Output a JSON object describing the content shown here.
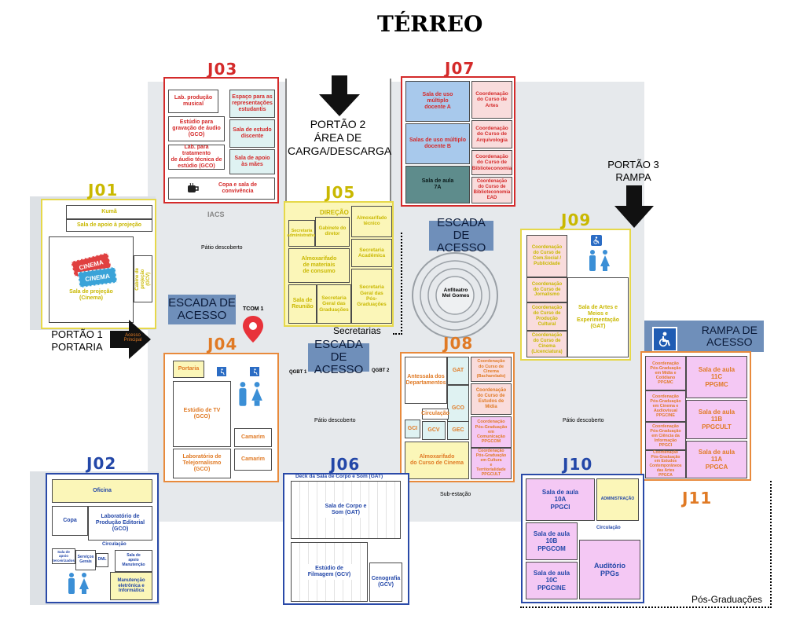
{
  "title": "TÉRREO",
  "blocks": {
    "j01": "J01",
    "j02": "J02",
    "j03": "J03",
    "j04": "J04",
    "j05": "J05",
    "j06": "J06",
    "j07": "J07",
    "j08": "J08",
    "j09": "J09",
    "j10": "J10",
    "j11": "J11"
  },
  "gates": {
    "portao1": "PORTÃO 1\nPORTARIA",
    "portao2": "PORTÃO 2\nÁREA DE\nCARGA/DESCARGA",
    "portao3": "PORTÃO 3\nRAMPA",
    "acesso_principal": "Acesso\nPrincipal"
  },
  "stairs": {
    "s1": "ESCADA DE\nACESSO",
    "s2": "ESCADA DE\nACESSO",
    "s3": "ESCADA DE\nACESSO",
    "ramp": "RAMPA DE\nACESSO"
  },
  "zones": {
    "secretarias": "Secretarias",
    "pos_graduacoes": "Pós-Graduações",
    "patio1": "Pátio descoberto",
    "patio2": "Pátio descoberto",
    "patio3": "Pátio descoberto",
    "iacs": "IACS",
    "sub_estacao": "Sub-estação",
    "tcom": "TCOM 1",
    "qgbt1": "QGBT 1",
    "qgbt2": "QGBT 2",
    "anfiteatro": "Anfiteatro\nMel Gomes"
  },
  "j01": {
    "kuma": "Kumã",
    "apoio_projecao": "Sala de apoio à projeção",
    "projecao": "Sala de projeção\n(Cinema)",
    "cabine": "Cabine de\nprojeção\n(GCV)",
    "ticket1": "CINEMA",
    "ticket2": "CINEMA"
  },
  "j02": {
    "oficina": "Oficina",
    "copa": "Copa",
    "lab_editorial": "Laboratório de\nProdução Editorial\n(GCO)",
    "circulacao": "Circulação",
    "apoio_terceirizados": "Sala de apoio\nterceirizados",
    "servicos_gerais": "Serviços\nGerais",
    "dml": "DML",
    "apoio_manutencao": "Sala de\napoio\nManutenção",
    "manutencao": "Manutenção\neletrônica e\nInformática"
  },
  "j03": {
    "lab_musical": "Lab. produção\nmusical",
    "espaco": "Espaço para as\nrepresentações\nestudantis",
    "estudio_audio": "Estúdio para\ngravação de áudio\n(GCO)",
    "estudo_discente": "Sala de estudo\ndiscente",
    "lab_tratamento": "Lab. para tratamento\nde áudio técnica de\nestúdio (GCO)",
    "apoio_maes": "Sala de apoio\nàs mães",
    "copa": "Copa e sala de\nconvivência"
  },
  "j04": {
    "portaria": "Portaria",
    "estudio_tv": "Estúdio de TV\n(GCO)",
    "camarim1": "Camarim",
    "camarim2": "Camarim",
    "telejornalismo": "Laboratório de\nTelejornalismo\n(GCO)"
  },
  "j05": {
    "direcao": "DIREÇÃO",
    "sec_adm": "Secretaria\nadministrativa",
    "gabinete": "Gabinete do\ndiretor",
    "almox_tecnico": "Almoxarifado\ntécnico",
    "almox_consumo": "Almoxarifado\nde materiais\nde consumo",
    "sec_academica": "Secretaria\nAcadêmica",
    "reuniao": "Sala de\nReunião",
    "sec_grad": "Secretaria\nGeral das\nGraduações",
    "sec_pos": "Secretaria\nGeral das\nPós-\nGraduações"
  },
  "j06": {
    "deck": "Deck da Sala de Corpo e Som (GAT)",
    "corpo_som": "Sala de Corpo e\nSom (GAT)",
    "filmagem": "Estúdio de\nFilmagem (GCV)",
    "cenografia": "Cenografia\n(GCV)"
  },
  "j07": {
    "multiuso_a": "Sala de uso\nmúltiplo\ndocente A",
    "multiuso_b": "Salas de uso múltiplo\ndocente B",
    "aula_7a": "Sala de aula\n7A",
    "artes": "Coordenação\ndo Curso de\nArtes",
    "arquivologia": "Coordenação\ndo Curso de\nArquivologia",
    "biblioteconomia": "Coordenação\ndo Curso de\nBiblioteconomia",
    "bibliot_ead": "Coordenação\ndo Curso de\nBiblioteconomia\nEAD"
  },
  "j08": {
    "antessala": "Antessala dos\nDepartamentos",
    "gat": "GAT",
    "gco": "GCO",
    "circulacao": "Circulação",
    "gci": "GCI",
    "gcv": "GCV",
    "gec": "GEC",
    "almox_cinema": "Almoxarifado\ndo Curso de Cinema",
    "cinema_bach": "Coordenação\ndo Curso de\nCinema\n(Bacharelado)",
    "estudos_midia": "Coordenação\ndo Curso de\nEstudos de\nMídia",
    "ppgcom": "Coordenação\nPós-Graduação\nem\nComunicação\nPPGCOM",
    "ppgcult": "Coordenação\nPós-Graduação\nem Cultura\ne\nTerritorialidade\nPPGCULT"
  },
  "j09": {
    "com_social": "Coordenação\ndo Curso de\nCom.Social /\nPublicidade",
    "jornalismo": "Coordenação\ndo Curso de\nJornalismo",
    "producao_cultural": "Coordenação\ndo Curso de\nProdução\nCultural",
    "cinema_lic": "Coordenação\ndo Curso de\nCinema\n(Licenciatura)",
    "artes_meios": "Sala de Artes e\nMeios e\nExperimentação\n(GAT)"
  },
  "j10": {
    "aula_10a": "Sala de aula\n10A\nPPGCI",
    "administracao": "ADMINISTRAÇÃO",
    "circulacao": "Circulação",
    "aula_10b": "Sala de aula\n10B\nPPGCOM",
    "aula_10c": "Sala de aula\n10C\nPPGCINE",
    "auditorio": "Auditório\nPPGs"
  },
  "j11": {
    "ppgmc": "Coordenação\nPós-Graduação\nem Mídia e\nCotidiano\nPPGMC",
    "aula_11c": "Sala de aula\n11C\nPPGMC",
    "ppgcine": "Coordenação\nPós-Graduação\nem Cinema e\nAudiovisual\nPPGCINE",
    "aula_11b": "Sala de aula\n11B\nPPGCULT",
    "ppgci": "Coordenação\nPós-Graduação\nem Ciência da\nInformação\nPPGCI",
    "ppgca": "Coordenação\nPós-Graduação\nem Estudos\nContemporâneos\ndas Artes\nPPGCA",
    "aula_11a": "Sala de aula\n11A\nPPGCA"
  },
  "icons": [
    "coffee-icon",
    "accessible-icon",
    "restroom-icon",
    "location-pin-icon",
    "arrow-icon",
    "ticket-icon"
  ],
  "colors": {
    "red": "#d42a2a",
    "yellow": "#e6d84a",
    "orange": "#e88a3c",
    "blue": "#2a4aa8",
    "stair": "#6f8fba",
    "pin": "#e8323a"
  }
}
